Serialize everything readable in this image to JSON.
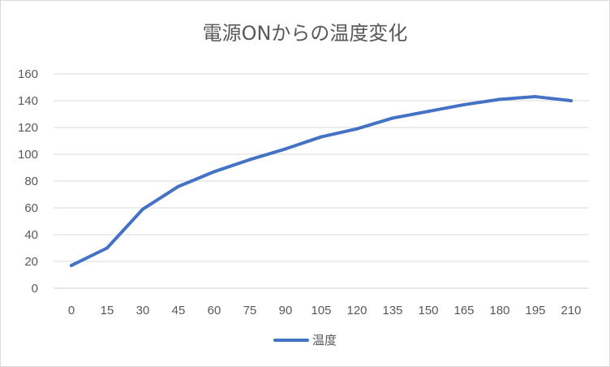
{
  "chart_data": {
    "type": "line",
    "title": "電源ONからの温度変化",
    "categories": [
      "0",
      "15",
      "30",
      "45",
      "60",
      "75",
      "90",
      "105",
      "120",
      "135",
      "150",
      "165",
      "180",
      "195",
      "210"
    ],
    "series": [
      {
        "name": "温度",
        "color": "#4472c4",
        "values": [
          17,
          30,
          59,
          76,
          87,
          96,
          104,
          113,
          119,
          127,
          132,
          137,
          141,
          143,
          140
        ]
      }
    ],
    "ylim": [
      0,
      160
    ],
    "yticks": [
      0,
      20,
      40,
      60,
      80,
      100,
      120,
      140,
      160
    ],
    "grid": true,
    "legend": "bottom"
  }
}
